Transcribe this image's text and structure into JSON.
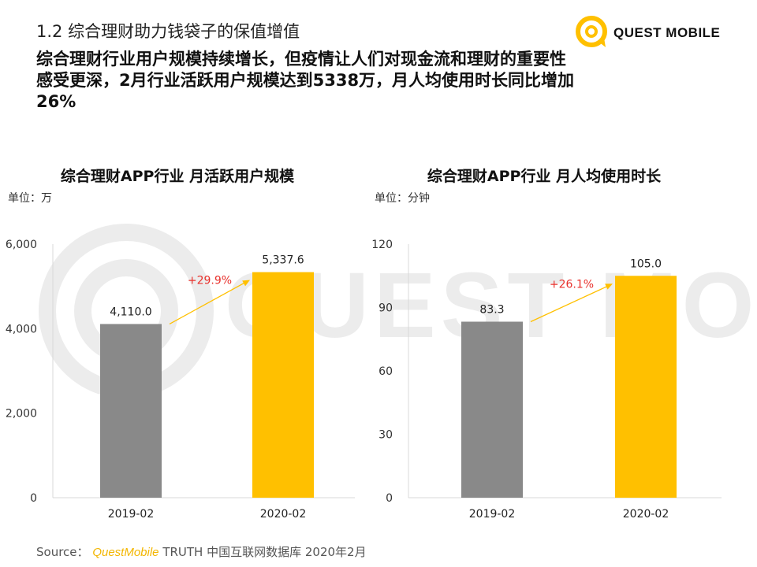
{
  "header": {
    "section_title": "1.2 综合理财助力钱袋子的保值增值",
    "headline": "综合理财行业用户规模持续增长，但疫情让人们对现金流和理财的重要性感受更深，2月行业活跃用户规模达到5338万，月人均使用时长同比增加26%",
    "logo_text": "QUEST MOBILE"
  },
  "watermark": {
    "text": "QUEST MOBILE"
  },
  "colors": {
    "bar_2019": "#898989",
    "bar_2020": "#ffc000",
    "growth_label": "#e8302b",
    "arrow": "#ffc000"
  },
  "chart_data": [
    {
      "type": "bar",
      "title": "综合理财APP行业 月活跃用户规模",
      "unit": "单位：万",
      "categories": [
        "2019-02",
        "2020-02"
      ],
      "values": [
        4110.0,
        5337.6
      ],
      "value_labels": [
        "4,110.0",
        "5,337.6"
      ],
      "growth_label": "+29.9%",
      "ylim": [
        0,
        6000
      ],
      "yticks": [
        0,
        2000,
        4000,
        6000
      ],
      "ytick_labels": [
        "0",
        "2,000",
        "4,000",
        "6,000"
      ],
      "grid": false
    },
    {
      "type": "bar",
      "title": "综合理财APP行业 月人均使用时长",
      "unit": "单位：分钟",
      "categories": [
        "2019-02",
        "2020-02"
      ],
      "values": [
        83.3,
        105.0
      ],
      "value_labels": [
        "83.3",
        "105.0"
      ],
      "growth_label": "+26.1%",
      "ylim": [
        0,
        120
      ],
      "yticks": [
        0,
        30,
        60,
        90,
        120
      ],
      "ytick_labels": [
        "0",
        "30",
        "60",
        "90",
        "120"
      ],
      "grid": false
    }
  ],
  "source": {
    "prefix": "Source：",
    "brand": "QuestMobile",
    "rest": "TRUTH 中国互联网数据库 2020年2月"
  }
}
